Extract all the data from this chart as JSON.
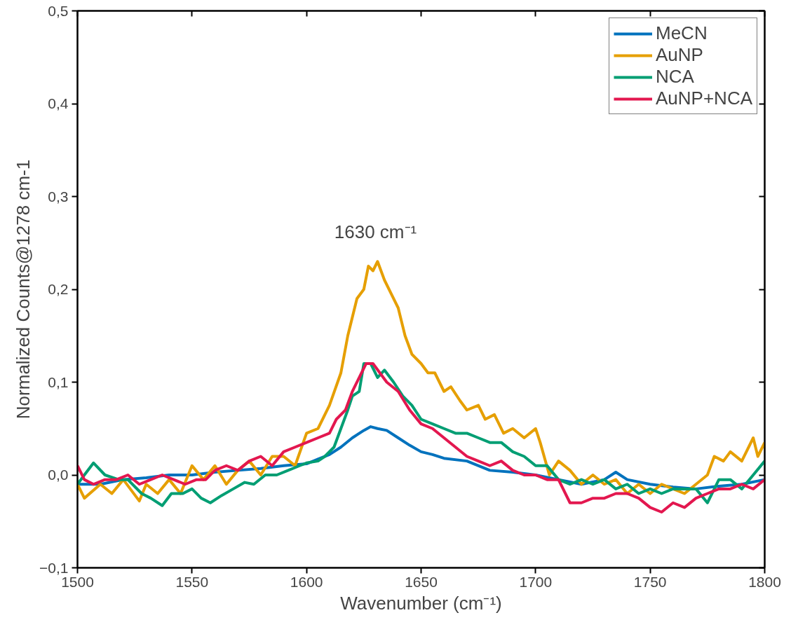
{
  "chart_data": {
    "type": "line",
    "xlabel": "Wavenumber (cm⁻¹)",
    "ylabel": "Normalized Counts@1278 cm-1",
    "xlim": [
      1500,
      1800
    ],
    "ylim": [
      -0.1,
      0.5
    ],
    "xticks": [
      1500,
      1550,
      1600,
      1650,
      1700,
      1750,
      1800
    ],
    "yticks": [
      {
        "value": -0.1,
        "label": "−0,1"
      },
      {
        "value": 0.0,
        "label": "0,0"
      },
      {
        "value": 0.1,
        "label": "0,1"
      },
      {
        "value": 0.2,
        "label": "0,2"
      },
      {
        "value": 0.3,
        "label": "0,3"
      },
      {
        "value": 0.4,
        "label": "0,4"
      },
      {
        "value": 0.5,
        "label": "0,5"
      }
    ],
    "grid": false,
    "legend": "top right",
    "line_style": "solid",
    "marker": "none",
    "annotations": [
      "1630 cm⁻¹"
    ],
    "series": [
      {
        "name": "MeCN",
        "color": "#0072bd",
        "x": [
          1500,
          1510,
          1520,
          1530,
          1540,
          1550,
          1560,
          1570,
          1580,
          1590,
          1600,
          1605,
          1610,
          1615,
          1620,
          1625,
          1628,
          1631,
          1635,
          1640,
          1645,
          1650,
          1655,
          1660,
          1670,
          1680,
          1690,
          1700,
          1710,
          1720,
          1730,
          1735,
          1740,
          1750,
          1760,
          1770,
          1780,
          1790,
          1800
        ],
        "values": [
          -0.01,
          -0.01,
          -0.005,
          -0.003,
          0.0,
          0.0,
          0.003,
          0.005,
          0.007,
          0.01,
          0.012,
          0.017,
          0.022,
          0.03,
          0.04,
          0.048,
          0.052,
          0.05,
          0.048,
          0.04,
          0.032,
          0.025,
          0.022,
          0.018,
          0.015,
          0.005,
          0.003,
          0.0,
          -0.005,
          -0.01,
          -0.005,
          0.003,
          -0.005,
          -0.01,
          -0.013,
          -0.015,
          -0.012,
          -0.01,
          -0.005
        ]
      },
      {
        "name": "AuNP",
        "color": "#e69f00",
        "x": [
          1500,
          1503,
          1510,
          1515,
          1520,
          1527,
          1530,
          1535,
          1540,
          1545,
          1550,
          1555,
          1560,
          1565,
          1570,
          1575,
          1580,
          1585,
          1590,
          1595,
          1600,
          1605,
          1610,
          1615,
          1618,
          1622,
          1625,
          1627,
          1629,
          1631,
          1634,
          1637,
          1640,
          1643,
          1646,
          1650,
          1653,
          1656,
          1660,
          1663,
          1667,
          1670,
          1675,
          1678,
          1682,
          1686,
          1690,
          1695,
          1700,
          1702,
          1706,
          1710,
          1715,
          1720,
          1725,
          1730,
          1735,
          1740,
          1745,
          1750,
          1755,
          1760,
          1765,
          1770,
          1775,
          1778,
          1782,
          1785,
          1790,
          1795,
          1797,
          1800
        ],
        "values": [
          -0.01,
          -0.025,
          -0.01,
          -0.02,
          -0.005,
          -0.028,
          -0.01,
          -0.02,
          -0.005,
          -0.02,
          0.01,
          -0.005,
          0.01,
          -0.01,
          0.005,
          0.015,
          0.0,
          0.02,
          0.02,
          0.01,
          0.045,
          0.05,
          0.075,
          0.11,
          0.15,
          0.19,
          0.2,
          0.225,
          0.22,
          0.23,
          0.21,
          0.195,
          0.18,
          0.15,
          0.13,
          0.12,
          0.11,
          0.11,
          0.09,
          0.095,
          0.08,
          0.07,
          0.075,
          0.06,
          0.065,
          0.045,
          0.05,
          0.04,
          0.05,
          0.035,
          0.0,
          0.015,
          0.005,
          -0.01,
          0.0,
          -0.01,
          -0.005,
          -0.02,
          -0.01,
          -0.02,
          -0.01,
          -0.015,
          -0.02,
          -0.01,
          0.0,
          0.02,
          0.015,
          0.025,
          0.015,
          0.04,
          0.02,
          0.035
        ]
      },
      {
        "name": "NCA",
        "color": "#009e73",
        "x": [
          1500,
          1503,
          1507,
          1512,
          1518,
          1522,
          1528,
          1532,
          1537,
          1541,
          1546,
          1550,
          1554,
          1558,
          1563,
          1568,
          1573,
          1577,
          1582,
          1587,
          1592,
          1597,
          1600,
          1605,
          1608,
          1612,
          1615,
          1618,
          1620,
          1623,
          1625,
          1628,
          1631,
          1634,
          1638,
          1642,
          1646,
          1650,
          1655,
          1660,
          1665,
          1670,
          1675,
          1680,
          1685,
          1690,
          1695,
          1700,
          1705,
          1710,
          1715,
          1720,
          1725,
          1730,
          1735,
          1740,
          1745,
          1750,
          1755,
          1760,
          1765,
          1770,
          1775,
          1780,
          1785,
          1790,
          1795,
          1800
        ],
        "values": [
          -0.01,
          0.0,
          0.013,
          0.0,
          -0.005,
          -0.005,
          -0.02,
          -0.025,
          -0.033,
          -0.02,
          -0.02,
          -0.015,
          -0.025,
          -0.03,
          -0.022,
          -0.015,
          -0.008,
          -0.01,
          0.0,
          0.0,
          0.005,
          0.01,
          0.013,
          0.015,
          0.02,
          0.03,
          0.05,
          0.07,
          0.085,
          0.09,
          0.12,
          0.12,
          0.105,
          0.113,
          0.1,
          0.085,
          0.075,
          0.06,
          0.055,
          0.05,
          0.045,
          0.045,
          0.04,
          0.035,
          0.035,
          0.025,
          0.02,
          0.01,
          0.01,
          -0.005,
          -0.01,
          -0.005,
          -0.01,
          -0.005,
          -0.015,
          -0.01,
          -0.02,
          -0.015,
          -0.02,
          -0.015,
          -0.015,
          -0.015,
          -0.03,
          -0.005,
          -0.005,
          -0.015,
          0.0,
          0.015
        ]
      },
      {
        "name": "AuNP+NCA",
        "color": "#e3174f",
        "x": [
          1500,
          1503,
          1507,
          1512,
          1517,
          1522,
          1527,
          1532,
          1537,
          1542,
          1547,
          1552,
          1556,
          1560,
          1565,
          1570,
          1575,
          1580,
          1585,
          1590,
          1595,
          1600,
          1605,
          1610,
          1613,
          1617,
          1620,
          1623,
          1626,
          1629,
          1632,
          1635,
          1640,
          1645,
          1650,
          1655,
          1660,
          1665,
          1670,
          1675,
          1680,
          1685,
          1690,
          1695,
          1700,
          1705,
          1710,
          1715,
          1720,
          1725,
          1730,
          1735,
          1740,
          1745,
          1750,
          1755,
          1760,
          1765,
          1770,
          1775,
          1780,
          1785,
          1790,
          1795,
          1800
        ],
        "values": [
          0.01,
          -0.005,
          -0.01,
          -0.005,
          -0.005,
          0.0,
          -0.01,
          -0.005,
          0.0,
          -0.005,
          -0.01,
          -0.005,
          -0.005,
          0.005,
          0.01,
          0.005,
          0.015,
          0.02,
          0.01,
          0.025,
          0.03,
          0.035,
          0.04,
          0.045,
          0.06,
          0.07,
          0.09,
          0.105,
          0.12,
          0.12,
          0.11,
          0.1,
          0.09,
          0.07,
          0.055,
          0.05,
          0.04,
          0.03,
          0.02,
          0.015,
          0.01,
          0.015,
          0.005,
          0.0,
          0.0,
          -0.005,
          -0.005,
          -0.03,
          -0.03,
          -0.025,
          -0.025,
          -0.02,
          -0.02,
          -0.025,
          -0.035,
          -0.04,
          -0.03,
          -0.035,
          -0.025,
          -0.02,
          -0.015,
          -0.015,
          -0.01,
          -0.015,
          -0.005
        ]
      }
    ]
  }
}
